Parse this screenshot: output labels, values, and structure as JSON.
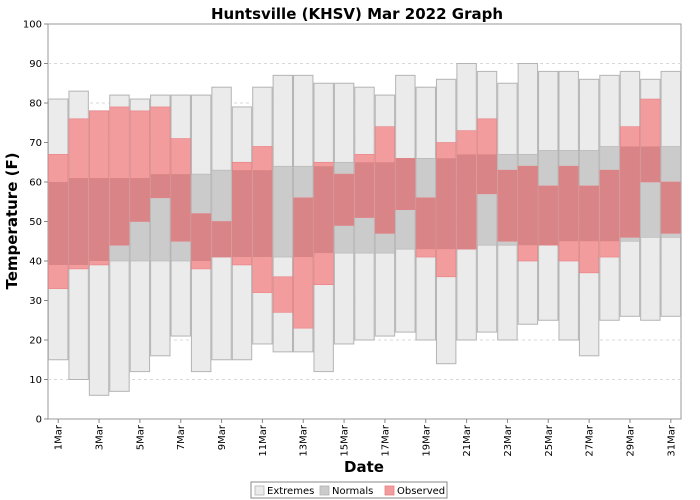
{
  "chart_data": {
    "type": "bar",
    "title": "Huntsville (KHSV) Mar 2022 Graph",
    "xlabel": "Date",
    "ylabel": "Temperature (F)",
    "ylim": [
      0,
      100
    ],
    "yticks": [
      0,
      10,
      20,
      30,
      40,
      50,
      60,
      70,
      80,
      90,
      100
    ],
    "x_tick_labels": [
      "1Mar",
      "3Mar",
      "5Mar",
      "7Mar",
      "9Mar",
      "11Mar",
      "13Mar",
      "15Mar",
      "17Mar",
      "19Mar",
      "21Mar",
      "23Mar",
      "25Mar",
      "27Mar",
      "29Mar",
      "31Mar"
    ],
    "grid": true,
    "legend_position": "bottom",
    "legend": [
      "Extremes",
      "Normals",
      "Observed"
    ],
    "colors": {
      "extremes_fill": "#ebebeb",
      "extremes_stroke": "#b4b4b4",
      "normals_fill": "#cbcbcb",
      "observed_fill": "#f29c9e",
      "overlap_fill": "#d98587",
      "observed_stroke": "#e87f82",
      "grid": "#d8d8d8",
      "axis": "#888888"
    },
    "days": [
      1,
      2,
      3,
      4,
      5,
      6,
      7,
      8,
      9,
      10,
      11,
      12,
      13,
      14,
      15,
      16,
      17,
      18,
      19,
      20,
      21,
      22,
      23,
      24,
      25,
      26,
      27,
      28,
      29,
      30,
      31
    ],
    "series": [
      {
        "name": "Extremes",
        "low": [
          15,
          10,
          6,
          7,
          12,
          16,
          21,
          12,
          15,
          15,
          19,
          17,
          17,
          12,
          19,
          20,
          21,
          22,
          20,
          14,
          20,
          22,
          20,
          24,
          25,
          20,
          16,
          25,
          26,
          25,
          26
        ],
        "high": [
          81,
          83,
          78,
          82,
          81,
          82,
          82,
          82,
          84,
          79,
          84,
          87,
          87,
          85,
          85,
          84,
          82,
          87,
          84,
          86,
          90,
          88,
          85,
          90,
          88,
          88,
          86,
          87,
          88,
          86,
          88
        ]
      },
      {
        "name": "Normals",
        "low": [
          39,
          39,
          40,
          40,
          40,
          40,
          40,
          40,
          41,
          41,
          41,
          41,
          41,
          42,
          42,
          42,
          42,
          43,
          43,
          43,
          43,
          44,
          44,
          44,
          44,
          45,
          45,
          45,
          45,
          46,
          46
        ],
        "high": [
          60,
          61,
          61,
          61,
          61,
          62,
          62,
          62,
          63,
          63,
          63,
          64,
          64,
          64,
          65,
          65,
          65,
          66,
          66,
          66,
          67,
          67,
          67,
          67,
          68,
          68,
          68,
          69,
          69,
          69,
          69
        ]
      },
      {
        "name": "Observed",
        "low": [
          33,
          38,
          39,
          44,
          50,
          56,
          45,
          38,
          41,
          39,
          32,
          27,
          23,
          34,
          49,
          51,
          47,
          53,
          41,
          36,
          43,
          57,
          45,
          40,
          44,
          40,
          37,
          41,
          46,
          60,
          47
        ],
        "high": [
          67,
          76,
          78,
          79,
          78,
          79,
          71,
          52,
          50,
          65,
          69,
          36,
          56,
          65,
          62,
          67,
          74,
          66,
          56,
          70,
          73,
          76,
          63,
          64,
          59,
          64,
          59,
          63,
          74,
          81,
          60
        ]
      }
    ]
  }
}
